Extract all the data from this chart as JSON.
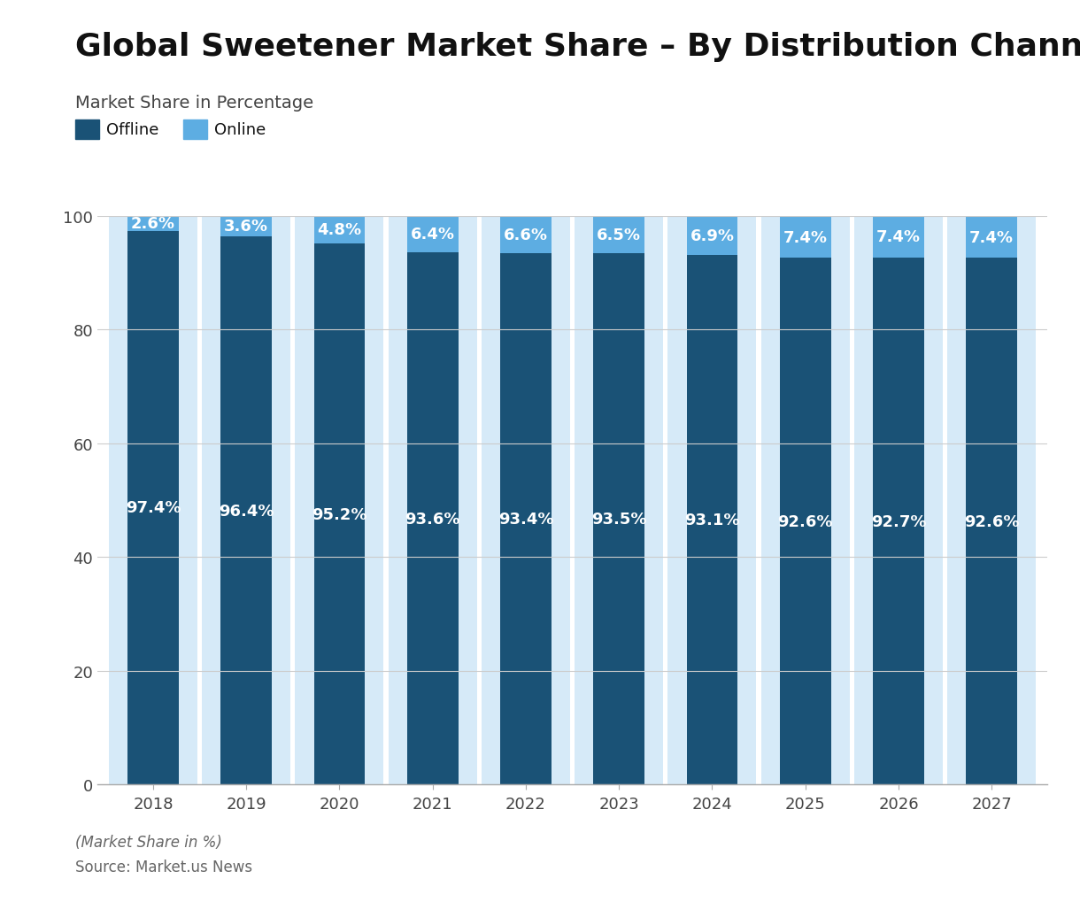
{
  "title": "Global Sweetener Market Share – By Distribution Channel",
  "subtitle": "Market Share in Percentage",
  "years": [
    2018,
    2019,
    2020,
    2021,
    2022,
    2023,
    2024,
    2025,
    2026,
    2027
  ],
  "offline": [
    97.4,
    96.4,
    95.2,
    93.6,
    93.4,
    93.5,
    93.1,
    92.6,
    92.7,
    92.6
  ],
  "online": [
    2.6,
    3.6,
    4.8,
    6.4,
    6.6,
    6.5,
    6.9,
    7.4,
    7.4,
    7.4
  ],
  "offline_color": "#1a5276",
  "online_color": "#5dade2",
  "bar_bg_color": "#d6eaf8",
  "offline_label": "Offline",
  "online_label": "Online",
  "ylim": [
    0,
    100
  ],
  "yticks": [
    0,
    20,
    40,
    60,
    80,
    100
  ],
  "footer_italic": "(Market Share in %)",
  "footer_source": "Source: Market.us News",
  "title_fontsize": 26,
  "subtitle_fontsize": 14,
  "tick_fontsize": 13,
  "footer_fontsize": 12,
  "legend_fontsize": 13,
  "bar_label_fontsize": 13,
  "bar_width": 0.55,
  "background_color": "#ffffff"
}
